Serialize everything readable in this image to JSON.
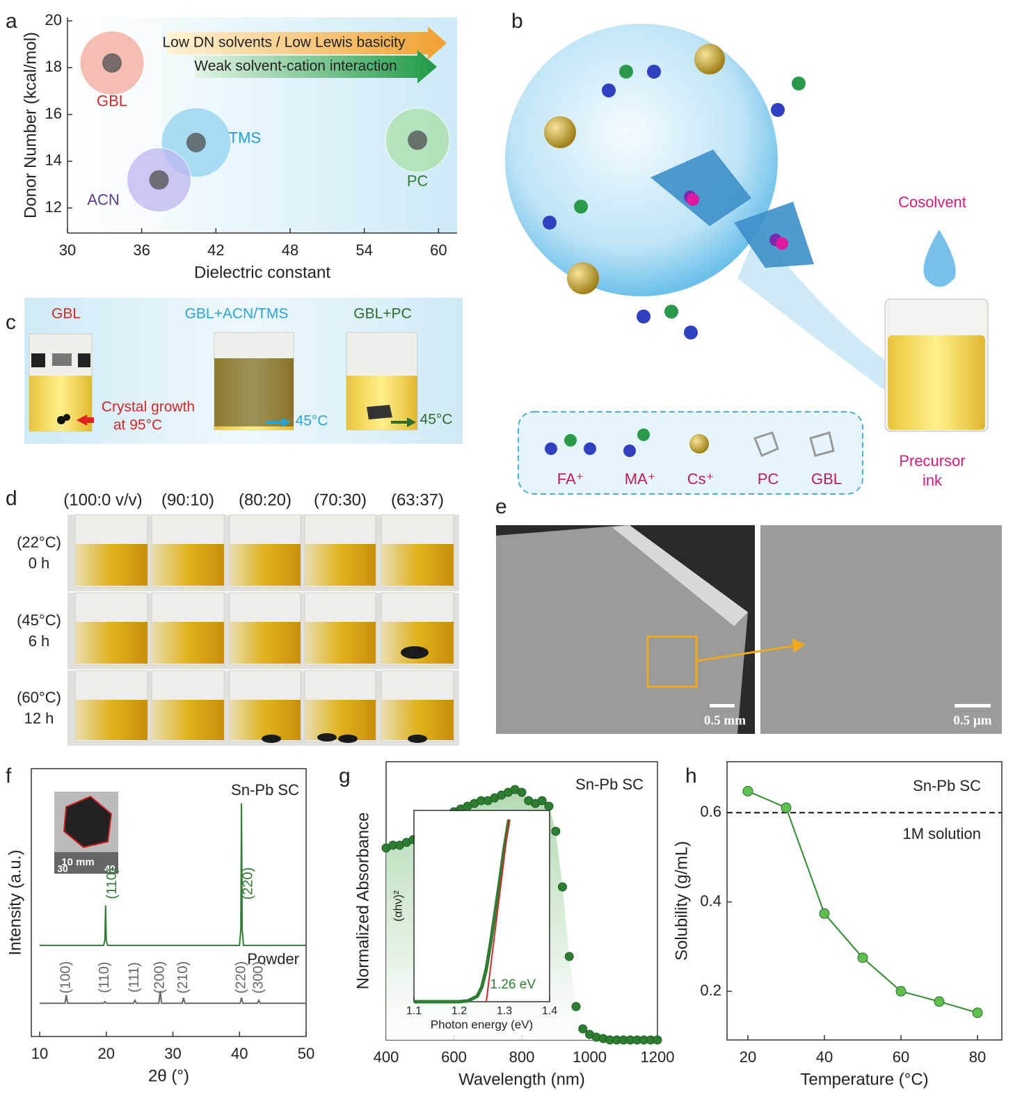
{
  "panels": [
    "a",
    "b",
    "c",
    "d",
    "e",
    "f",
    "g",
    "h"
  ],
  "chart_data": [
    {
      "type": "scatter",
      "xlabel": "Dielectric constant",
      "ylabel": "Donor Number (kcal/mol)",
      "xlim": [
        30,
        61.5
      ],
      "xticks": [
        30,
        36,
        42,
        48,
        54,
        60
      ],
      "ylim": [
        10.93,
        20.15
      ],
      "yticks": [
        12,
        14,
        16,
        18,
        20
      ],
      "labels": [
        "GBL",
        "TMS",
        "ACN",
        "PC"
      ],
      "x": [
        33.6,
        40.4,
        37.4,
        58.3
      ],
      "values": [
        18.2,
        14.8,
        13.2,
        14.9
      ],
      "colors": [
        "#f4a99a",
        "#8fd3f0",
        "#bdb8f0",
        "#a9e0a9"
      ],
      "annotations": [
        "Low DN solvents / Low Lewis basicity",
        "Weak solvent-cation interaction"
      ]
    },
    {
      "type": "line",
      "xlabel": "2θ (°)",
      "ylabel": "Intensity (a.u.)",
      "xlim": [
        8.75,
        50
      ],
      "xticks": [
        10,
        20,
        30,
        40,
        50
      ],
      "ylim": [
        0,
        1
      ],
      "series": [
        {
          "name": "Sn-Pb SC",
          "color": "#2e7d32",
          "x": [
            10,
            19.6,
            19.8,
            19.9,
            20.0,
            20.2,
            40.0,
            40.2,
            40.3,
            40.4,
            40.6,
            50
          ],
          "values": [
            0.34,
            0.34,
            0.36,
            0.49,
            0.36,
            0.34,
            0.34,
            0.4,
            0.87,
            0.4,
            0.34,
            0.34
          ]
        },
        {
          "name": "Powder",
          "color": "#666666",
          "x": [
            10,
            13.8,
            14.0,
            14.2,
            19.6,
            19.8,
            20.0,
            24.1,
            24.3,
            24.5,
            27.9,
            28.1,
            28.3,
            31.4,
            31.6,
            31.8,
            40.1,
            40.3,
            40.5,
            42.7,
            42.9,
            43.1,
            50
          ],
          "values": [
            0.124,
            0.124,
            0.155,
            0.124,
            0.124,
            0.13,
            0.124,
            0.124,
            0.135,
            0.124,
            0.124,
            0.17,
            0.124,
            0.124,
            0.145,
            0.124,
            0.124,
            0.145,
            0.124,
            0.124,
            0.135,
            0.124,
            0.124
          ]
        }
      ],
      "peaks": [
        {
          "text": "(110)",
          "x": 19.9,
          "series": 0
        },
        {
          "text": "(220)",
          "x": 40.3,
          "series": 0
        },
        {
          "text": "(100)",
          "x": 14.0,
          "series": 1
        },
        {
          "text": "(110)",
          "x": 19.8,
          "series": 1
        },
        {
          "text": "(111)",
          "x": 24.3,
          "series": 1
        },
        {
          "text": "(200)",
          "x": 28.1,
          "series": 1
        },
        {
          "text": "(210)",
          "x": 31.6,
          "series": 1
        },
        {
          "text": "(220)",
          "x": 40.3,
          "series": 1
        },
        {
          "text": "(300)",
          "x": 42.9,
          "series": 1
        }
      ],
      "inset_labels": [
        "10 mm",
        "30",
        "40"
      ]
    },
    {
      "type": "line",
      "xlabel": "Wavelength (nm)",
      "ylabel": "Normalized Absorbance",
      "xlim": [
        400,
        1200
      ],
      "xticks": [
        400,
        600,
        800,
        1000,
        1200
      ],
      "ylim": [
        0,
        1
      ],
      "annotation": "Sn-Pb SC",
      "color": "#2e7d32",
      "x": [
        400,
        420,
        440,
        460,
        480,
        500,
        520,
        540,
        560,
        580,
        600,
        620,
        640,
        660,
        680,
        700,
        720,
        740,
        760,
        780,
        800,
        820,
        840,
        860,
        880,
        900,
        920,
        940,
        960,
        980,
        1000,
        1020,
        1040,
        1060,
        1080,
        1100,
        1120,
        1140,
        1160,
        1180,
        1200
      ],
      "values": [
        0.69,
        0.7,
        0.7,
        0.71,
        0.72,
        0.72,
        0.73,
        0.75,
        0.78,
        0.8,
        0.82,
        0.83,
        0.84,
        0.85,
        0.86,
        0.86,
        0.87,
        0.88,
        0.89,
        0.9,
        0.89,
        0.86,
        0.85,
        0.86,
        0.84,
        0.75,
        0.55,
        0.3,
        0.12,
        0.04,
        0.02,
        0.01,
        0.005,
        0,
        0,
        0,
        0,
        0,
        0,
        0,
        0
      ]
    },
    {
      "type": "line",
      "xlabel": "Photon energy (eV)",
      "ylabel": "(αhν)²",
      "xlim": [
        1.1,
        1.4
      ],
      "xticks": [
        1.1,
        1.2,
        1.3,
        1.4
      ],
      "ylim": [
        0,
        1.05
      ],
      "annotation": "1.26 eV",
      "color": "#2e7d32",
      "x": [
        1.1,
        1.2,
        1.22,
        1.24,
        1.25,
        1.26,
        1.27,
        1.28,
        1.29,
        1.3,
        1.31
      ],
      "values": [
        0,
        0,
        0.005,
        0.03,
        0.08,
        0.18,
        0.33,
        0.5,
        0.67,
        0.85,
        1.0
      ],
      "fit": {
        "x": [
          1.26,
          1.31
        ],
        "values": [
          0,
          1
        ],
        "color": "#d62728"
      }
    },
    {
      "type": "line",
      "xlabel": "Temperature (°C)",
      "ylabel": "Solubility (g/mL)",
      "xlim": [
        14.55,
        86.36
      ],
      "xticks": [
        20,
        40,
        60,
        80
      ],
      "ylim": [
        0.091,
        0.714
      ],
      "yticks": [
        0.2,
        0.4,
        0.6
      ],
      "annotation": "Sn-Pb SC",
      "color": "#2e8b2e",
      "x": [
        20,
        30,
        40,
        50,
        60,
        70,
        80
      ],
      "values": [
        0.648,
        0.611,
        0.374,
        0.275,
        0.2,
        0.177,
        0.152
      ],
      "hline": {
        "value": 0.6,
        "label": "1M solution"
      }
    }
  ],
  "diagram_b": {
    "cosolvent": "Cosolvent",
    "ink": [
      "Precursor",
      "ink"
    ],
    "legend": [
      "FA⁺",
      "MA⁺",
      "Cs⁺",
      "PC",
      "GBL"
    ]
  },
  "panel_c": {
    "labels": [
      "GBL",
      "GBL+ACN/TMS",
      "GBL+PC"
    ],
    "notes": [
      "Crystal growth",
      "at 95°C",
      "45°C",
      "45°C"
    ]
  },
  "panel_d": {
    "columns": [
      "(100:0 v/v)",
      "(90:10)",
      "(80:20)",
      "(70:30)",
      "(63:37)"
    ],
    "rows": [
      [
        "(22°C)",
        "0 h"
      ],
      [
        "(45°C)",
        "6 h"
      ],
      [
        "(60°C)",
        "12 h"
      ]
    ]
  },
  "panel_e": {
    "scale_bars": [
      "0.5 mm",
      "0.5 µm"
    ]
  }
}
